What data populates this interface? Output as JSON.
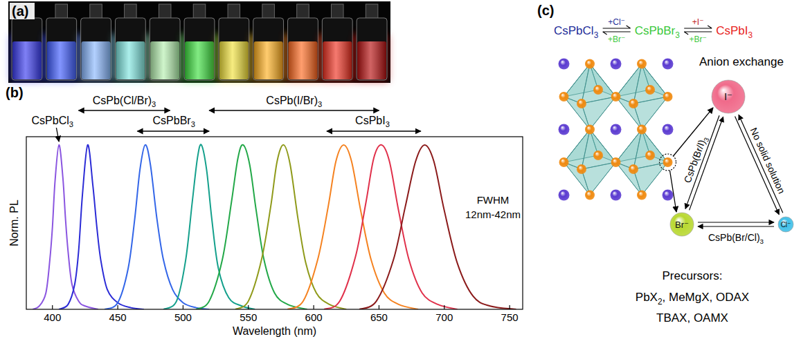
{
  "panel_labels": [
    "(a)",
    "(b)",
    "(c)"
  ],
  "photo": {
    "vial_colors": [
      "#3a3cf0",
      "#3f5cff",
      "#8ab8ff",
      "#7fe6e0",
      "#b6f0b0",
      "#3ee040",
      "#f2e23c",
      "#ffb020",
      "#ff6a20",
      "#f03222",
      "#b81010"
    ]
  },
  "chart_data": {
    "type": "line",
    "x_label": "Wavelength (nm)",
    "y_label": "Norm. PL",
    "xlim": [
      380,
      760
    ],
    "xticks": [
      400,
      450,
      500,
      550,
      600,
      650,
      700,
      750
    ],
    "ylim": [
      0,
      1.05
    ],
    "tick_labels": "x",
    "annotations": [
      "CsPbCl3",
      "CsPb(Cl/Br)3",
      "CsPbBr3",
      "CsPb(I/Br)3",
      "CsPbI3",
      "FWHM",
      "12nm-42nm"
    ],
    "series": [
      {
        "color": "#8a55e0",
        "x": [
          385,
          390,
          395,
          398,
          400,
          402,
          405,
          408,
          410,
          412,
          415,
          420,
          425,
          435
        ],
        "values": [
          0,
          0.02,
          0.1,
          0.3,
          0.5,
          0.78,
          1,
          0.8,
          0.55,
          0.35,
          0.15,
          0.05,
          0.02,
          0
        ]
      },
      {
        "color": "#2b2bd6",
        "x": [
          405,
          412,
          417,
          420,
          423,
          427,
          431,
          434,
          437,
          442,
          450,
          460,
          470
        ],
        "values": [
          0,
          0.03,
          0.15,
          0.35,
          0.7,
          1,
          0.75,
          0.5,
          0.3,
          0.12,
          0.04,
          0.01,
          0
        ]
      },
      {
        "color": "#3366e8",
        "x": [
          440,
          450,
          458,
          463,
          467,
          471,
          475,
          480,
          485,
          492,
          500,
          510,
          520
        ],
        "values": [
          0,
          0.04,
          0.25,
          0.55,
          0.85,
          1,
          0.88,
          0.55,
          0.3,
          0.12,
          0.04,
          0.01,
          0
        ]
      },
      {
        "color": "#14a08c",
        "x": [
          485,
          495,
          502,
          507,
          511,
          514,
          518,
          522,
          527,
          535,
          545,
          555
        ],
        "values": [
          0,
          0.05,
          0.3,
          0.65,
          0.92,
          1,
          0.85,
          0.55,
          0.25,
          0.07,
          0.02,
          0
        ]
      },
      {
        "color": "#22a848",
        "x": [
          510,
          520,
          530,
          537,
          542,
          546,
          551,
          556,
          562,
          570,
          580,
          595
        ],
        "values": [
          0,
          0.05,
          0.3,
          0.65,
          0.92,
          1,
          0.88,
          0.6,
          0.3,
          0.1,
          0.03,
          0
        ]
      },
      {
        "color": "#8f9a1a",
        "x": [
          540,
          550,
          560,
          567,
          572,
          577,
          582,
          588,
          594,
          602,
          612,
          625
        ],
        "values": [
          0,
          0.05,
          0.3,
          0.62,
          0.9,
          1,
          0.88,
          0.55,
          0.28,
          0.1,
          0.03,
          0
        ]
      },
      {
        "color": "#f58220",
        "x": [
          580,
          592,
          603,
          611,
          617,
          623,
          629,
          636,
          644,
          654,
          665,
          680
        ],
        "values": [
          0,
          0.05,
          0.3,
          0.62,
          0.9,
          1,
          0.9,
          0.6,
          0.3,
          0.1,
          0.03,
          0
        ]
      },
      {
        "color": "#e0304a",
        "x": [
          608,
          620,
          632,
          640,
          646,
          652,
          658,
          665,
          673,
          683,
          695,
          710
        ],
        "values": [
          0,
          0.05,
          0.32,
          0.65,
          0.92,
          1,
          0.9,
          0.6,
          0.3,
          0.1,
          0.03,
          0
        ]
      },
      {
        "color": "#8b1a1a",
        "x": [
          635,
          648,
          661,
          670,
          678,
          685,
          692,
          700,
          710,
          722,
          735,
          755
        ],
        "values": [
          0,
          0.05,
          0.3,
          0.62,
          0.9,
          1,
          0.9,
          0.6,
          0.28,
          0.08,
          0.02,
          0
        ]
      }
    ]
  },
  "diagram": {
    "reaction": {
      "species": [
        {
          "text": "CsPbCl3",
          "color": "#1f2f9a"
        },
        {
          "text": "CsPbBr3",
          "color": "#3cc83c"
        },
        {
          "text": "CsPbI3",
          "color": "#e8241e"
        }
      ],
      "arrows": [
        {
          "above": {
            "text": "+Cl⁻",
            "color": "#1f2f9a"
          },
          "below": {
            "text": "+Br⁻",
            "color": "#3cc83c"
          }
        },
        {
          "above": {
            "text": "+I⁻",
            "color": "#c0201c"
          },
          "below": {
            "text": "+Br⁻",
            "color": "#3cc83c"
          }
        }
      ]
    },
    "title": "Anion exchange",
    "ions": [
      {
        "text": "I⁻",
        "color": "#f06a8a"
      },
      {
        "text": "Br⁻",
        "color": "#b8d830"
      },
      {
        "text": "Cl⁻",
        "color": "#40c0e8"
      }
    ],
    "edges": [
      "CsPb(Br/I)3",
      "No solid solution",
      "CsPb(Br/Cl)3"
    ],
    "precursors": {
      "title": "Precursors:",
      "lines": [
        "PbX2, MeMgX, ODAX",
        "TBAX, OAMX"
      ]
    }
  }
}
